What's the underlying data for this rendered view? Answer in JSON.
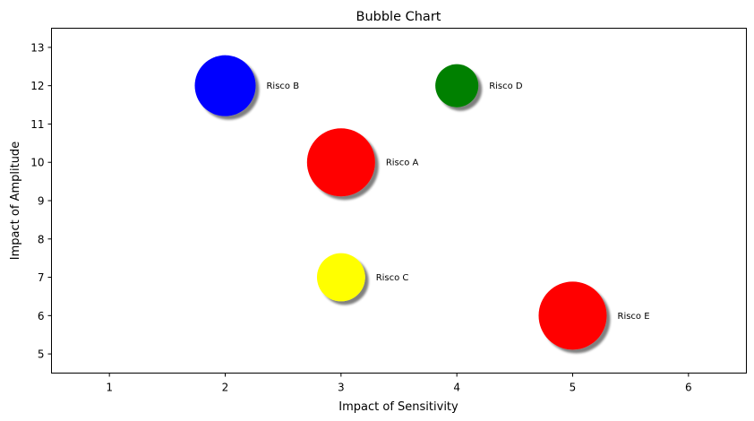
{
  "chart_data": {
    "type": "scatter",
    "title": "Bubble Chart",
    "xlabel": "Impact of Sensitivity",
    "ylabel": "Impact of Amplitude",
    "xlim": [
      0.5,
      6.5
    ],
    "ylim": [
      4.5,
      13.5
    ],
    "xticks": [
      1,
      2,
      3,
      4,
      5,
      6
    ],
    "yticks": [
      5,
      6,
      7,
      8,
      9,
      10,
      11,
      12,
      13
    ],
    "grid": false,
    "legend": "none",
    "points": [
      {
        "label": "Risco A",
        "x": 3,
        "y": 10,
        "size": 1.0,
        "color": "#ff0000"
      },
      {
        "label": "Risco B",
        "x": 2,
        "y": 12,
        "size": 0.8,
        "color": "#0000ff"
      },
      {
        "label": "Risco C",
        "x": 3,
        "y": 7,
        "size": 0.5,
        "color": "#ffff00"
      },
      {
        "label": "Risco D",
        "x": 4,
        "y": 12,
        "size": 0.4,
        "color": "#008000"
      },
      {
        "label": "Risco E",
        "x": 5,
        "y": 6,
        "size": 1.0,
        "color": "#ff0000"
      }
    ]
  }
}
